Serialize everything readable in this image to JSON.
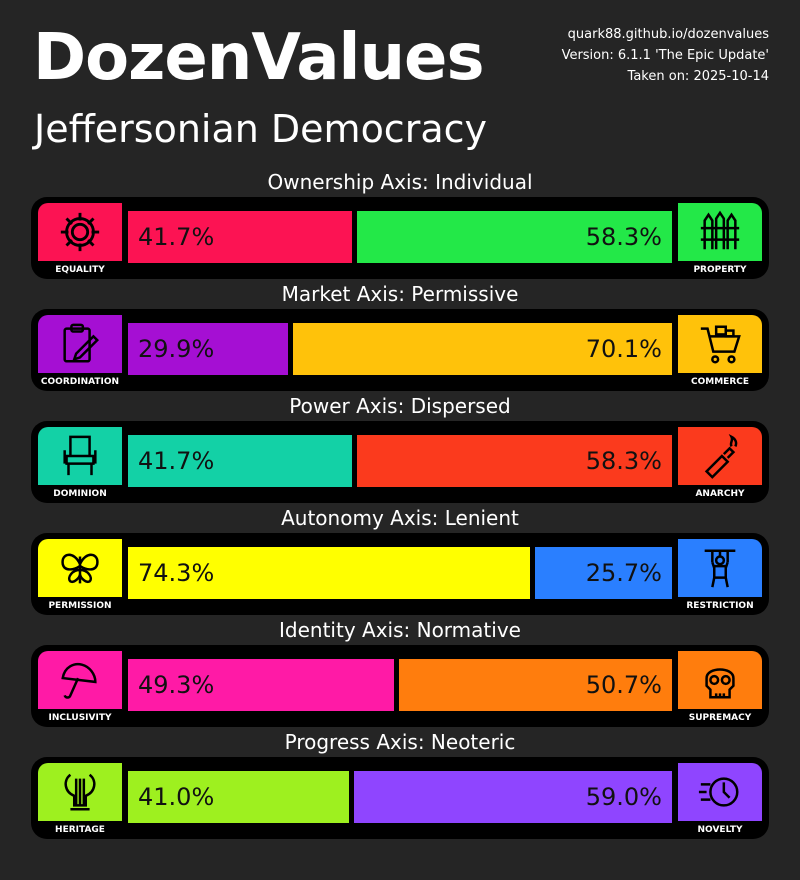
{
  "header": {
    "title": "DozenValues",
    "subtitle": "Jeffersonian Democracy",
    "site": "quark88.github.io/dozenvalues",
    "version": "Version: 6.1.1 'The Epic Update'",
    "taken": "Taken on: 2025-10-14"
  },
  "axes": [
    {
      "title": "Ownership Axis: Individual",
      "left": {
        "label": "EQUALITY",
        "value": 41.7,
        "text": "41.7%",
        "color": "#fc1353",
        "icon": "gear-icon"
      },
      "right": {
        "label": "PROPERTY",
        "value": 58.3,
        "text": "58.3%",
        "color": "#23e848",
        "icon": "fence-icon"
      }
    },
    {
      "title": "Market Axis: Permissive",
      "left": {
        "label": "COORDINATION",
        "value": 29.9,
        "text": "29.9%",
        "color": "#a50fd3",
        "icon": "clipboard-icon"
      },
      "right": {
        "label": "COMMERCE",
        "value": 70.1,
        "text": "70.1%",
        "color": "#ffc20a",
        "icon": "shopping-cart-icon"
      }
    },
    {
      "title": "Power Axis: Dispersed",
      "left": {
        "label": "DOMINION",
        "value": 41.7,
        "text": "41.7%",
        "color": "#13d1a6",
        "icon": "throne-icon"
      },
      "right": {
        "label": "ANARCHY",
        "value": 58.3,
        "text": "58.3%",
        "color": "#fb3a1d",
        "icon": "molotov-icon"
      }
    },
    {
      "title": "Autonomy Axis: Lenient",
      "left": {
        "label": "PERMISSION",
        "value": 74.3,
        "text": "74.3%",
        "color": "#ffff00",
        "icon": "butterfly-icon"
      },
      "right": {
        "label": "RESTRICTION",
        "value": 25.7,
        "text": "25.7%",
        "color": "#2a7fff",
        "icon": "puppet-icon"
      }
    },
    {
      "title": "Identity Axis: Normative",
      "left": {
        "label": "INCLUSIVITY",
        "value": 49.3,
        "text": "49.3%",
        "color": "#ff1aa6",
        "icon": "umbrella-icon"
      },
      "right": {
        "label": "SUPREMACY",
        "value": 50.7,
        "text": "50.7%",
        "color": "#ff7d0d",
        "icon": "skull-icon"
      }
    },
    {
      "title": "Progress Axis: Neoteric",
      "left": {
        "label": "HERITAGE",
        "value": 41.0,
        "text": "41.0%",
        "color": "#9ef01f",
        "icon": "lyre-icon"
      },
      "right": {
        "label": "NOVELTY",
        "value": 59.0,
        "text": "59.0%",
        "color": "#8f45ff",
        "icon": "clock-icon"
      }
    }
  ]
}
